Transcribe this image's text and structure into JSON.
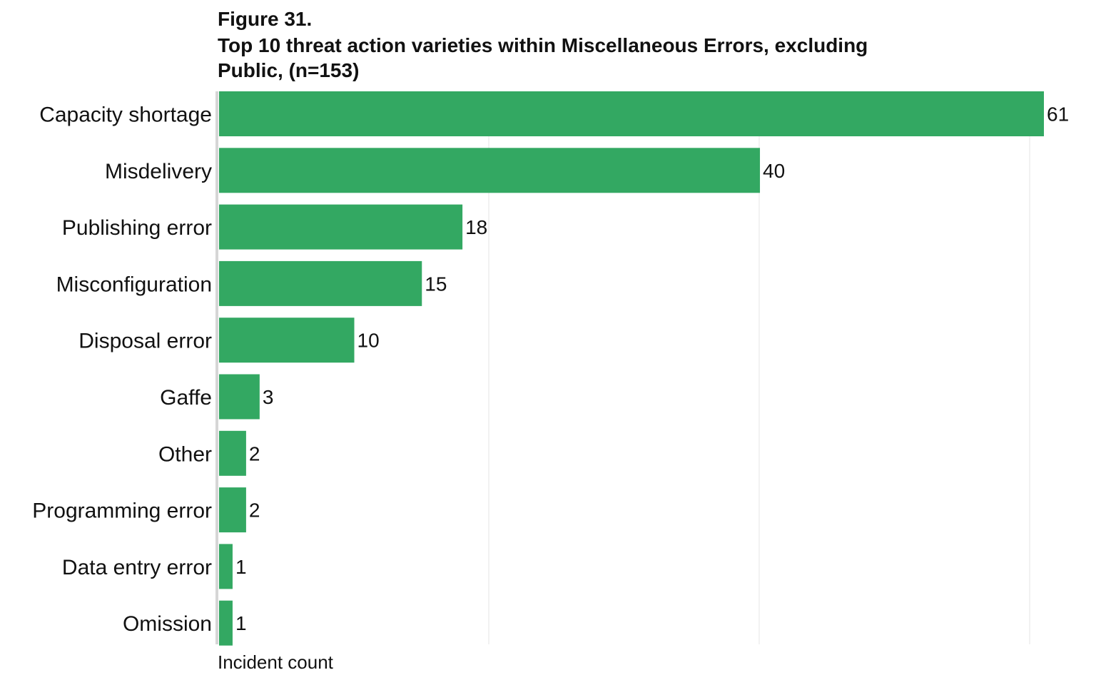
{
  "figure": {
    "label": "Figure 31.",
    "title": "Top 10 threat action varieties within Miscellaneous Errors, excluding Public, (n=153)"
  },
  "colors": {
    "bar": "#33a862",
    "grid": "#e6e6e6",
    "axis": "#d6d6d6"
  },
  "chart_data": {
    "type": "bar",
    "orientation": "horizontal",
    "categories": [
      "Capacity shortage",
      "Misdelivery",
      "Publishing error",
      "Misconfiguration",
      "Disposal error",
      "Gaffe",
      "Other",
      "Programming error",
      "Data entry error",
      "Omission"
    ],
    "values": [
      61,
      40,
      18,
      15,
      10,
      3,
      2,
      2,
      1,
      1
    ],
    "data_labels": [
      "61",
      "40",
      "18",
      "15",
      "10",
      "3",
      "2",
      "2",
      "1",
      "1"
    ],
    "xlabel": "Incident count",
    "xlim": [
      0,
      61
    ],
    "grid": true,
    "legend": "none"
  }
}
